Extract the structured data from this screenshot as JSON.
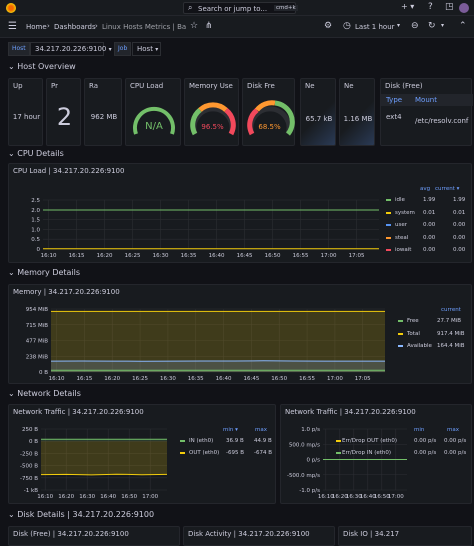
{
  "topbar": {
    "search_placeholder": "Search or jump to...",
    "search_shortcut": "cmd+k",
    "add_label": "+ ▾"
  },
  "nav": {
    "breadcrumb": [
      "Home",
      "Dashboards",
      "Linux Hosts Metrics | Base"
    ],
    "time_range": "Last 1 hour"
  },
  "vars": {
    "host_label": "Host",
    "host_value": "34.217.20.226:9100",
    "job_label": "Job",
    "job_value": "Host"
  },
  "rows": {
    "host_overview": "Host Overview",
    "cpu_details": "CPU Details",
    "memory_details": "Memory Details",
    "network_details": "Network Details",
    "disk_details": "Disk Details | 34.217.20.226:9100"
  },
  "stats": [
    {
      "title": "Up",
      "value": "17 hour"
    },
    {
      "title": "Pr",
      "value": "2"
    },
    {
      "title": "Ra",
      "value": "962 MB"
    },
    {
      "title": "CPU Load",
      "value": "N/A"
    },
    {
      "title": "Memory Use",
      "value": "96.5%",
      "level": 0.965
    },
    {
      "title": "Disk Fre",
      "value": "68.5%",
      "level": 0.685
    },
    {
      "title": "Ne",
      "value": "65.7 kB"
    },
    {
      "title": "Ne",
      "value": "1.16 MB"
    }
  ],
  "disk_table": {
    "title": "Disk (Free)",
    "headers": [
      "Type",
      "Mount"
    ],
    "rows": [
      [
        "ext4",
        "/etc/resolv.conf"
      ]
    ]
  },
  "cpu_load": {
    "title": "CPU Load | 34.217.20.226:9100",
    "legend_headers": [
      "avg",
      "current ▾"
    ],
    "legend": [
      {
        "name": "idle",
        "avg": "1.99",
        "current": "1.99",
        "color": "#73bf69"
      },
      {
        "name": "system",
        "avg": "0.01",
        "current": "0.01",
        "color": "#f2cc0c"
      },
      {
        "name": "user",
        "avg": "0.00",
        "current": "0.00",
        "color": "#5794f2"
      },
      {
        "name": "steal",
        "avg": "0.00",
        "current": "0.00",
        "color": "#ff9830"
      },
      {
        "name": "iowait",
        "avg": "0.00",
        "current": "0.00",
        "color": "#f2495c"
      }
    ]
  },
  "memory": {
    "title": "Memory | 34.217.20.226:9100",
    "legend_header": "current",
    "legend": [
      {
        "name": "Free",
        "value": "27.7 MiB",
        "color": "#73bf69"
      },
      {
        "name": "Total",
        "value": "917.4 MiB",
        "color": "#f2cc0c"
      },
      {
        "name": "Available",
        "value": "164.4 MiB",
        "color": "#8ab8ff"
      }
    ]
  },
  "net1": {
    "title": "Network Traffic | 34.217.20.226:9100",
    "legend_headers": [
      "min ▾",
      "max"
    ],
    "legend": [
      {
        "name": "IN (eth0)",
        "min": "36.9 B",
        "max": "44.9 B",
        "color": "#73bf69"
      },
      {
        "name": "OUT (eth0)",
        "min": "-695 B",
        "max": "-674 B",
        "color": "#f2cc0c"
      }
    ]
  },
  "net2": {
    "title": "Network Traffic | 34.217.20.226:9100",
    "legend_headers": [
      "min",
      "max"
    ],
    "legend": [
      {
        "name": "Err/Drop OUT (eth0)",
        "min": "0.00 p/s",
        "max": "0.00 p/s",
        "color": "#f2cc0c"
      },
      {
        "name": "Err/Drop IN (eth0)",
        "min": "0.00 p/s",
        "max": "0.00 p/s",
        "color": "#73bf69"
      }
    ]
  },
  "disk_panels": [
    "Disk (Free) | 34.217.20.226:9100",
    "Disk Activity | 34.217.20.226:9100",
    "Disk IO | 34.217"
  ],
  "chart_data": [
    {
      "type": "line",
      "title": "CPU Load | 34.217.20.226:9100",
      "x": [
        "16:10",
        "16:15",
        "16:20",
        "16:25",
        "16:30",
        "16:35",
        "16:40",
        "16:45",
        "16:50",
        "16:55",
        "17:00",
        "17:05"
      ],
      "yticks": [
        "0",
        "0.5",
        "1.0",
        "1.5",
        "2.0",
        "2.5"
      ],
      "ylim": [
        0,
        2.5
      ],
      "series": [
        {
          "name": "idle",
          "values": [
            1.99,
            1.99,
            1.99,
            1.99,
            1.99,
            1.99,
            1.99,
            1.99,
            1.99,
            1.99,
            1.99,
            1.99
          ]
        },
        {
          "name": "system",
          "values": [
            0.01,
            0.01,
            0.01,
            0.01,
            0.01,
            0.01,
            0.01,
            0.01,
            0.01,
            0.01,
            0.01,
            0.01
          ]
        }
      ]
    },
    {
      "type": "area",
      "title": "Memory | 34.217.20.226:9100",
      "x": [
        "16:10",
        "16:15",
        "16:20",
        "16:25",
        "16:30",
        "16:35",
        "16:40",
        "16:45",
        "16:50",
        "16:55",
        "17:00",
        "17:05"
      ],
      "yticks": [
        "0 B",
        "238 MiB",
        "477 MiB",
        "715 MiB",
        "954 MiB"
      ],
      "ylim": [
        0,
        954
      ],
      "series": [
        {
          "name": "Total",
          "values": [
            917.4,
            917.4,
            917.4,
            917.4,
            917.4,
            917.4,
            917.4,
            917.4,
            917.4,
            917.4,
            917.4,
            917.4
          ]
        },
        {
          "name": "Available",
          "values": [
            165,
            166,
            165,
            164,
            165,
            166,
            167,
            170,
            166,
            165,
            165,
            164.4
          ]
        },
        {
          "name": "Free",
          "values": [
            28,
            28,
            28,
            28,
            28,
            28,
            28,
            28,
            28,
            28,
            28,
            27.7
          ]
        }
      ]
    },
    {
      "type": "area",
      "title": "Network Traffic | 34.217.20.226:9100",
      "x": [
        "16:10",
        "16:20",
        "16:30",
        "16:40",
        "16:50",
        "17:00"
      ],
      "yticks": [
        "250 B",
        "0 B",
        "-250 B",
        "-500 B",
        "-750 B",
        "-1 kB"
      ],
      "ylim": [
        -1000,
        250
      ],
      "series": [
        {
          "name": "IN (eth0)",
          "values": [
            40,
            41,
            40,
            42,
            40,
            41
          ]
        },
        {
          "name": "OUT (eth0)",
          "values": [
            -684,
            -680,
            -690,
            -676,
            -686,
            -680
          ]
        }
      ]
    },
    {
      "type": "line",
      "title": "Network Traffic | 34.217.20.226:9100",
      "x": [
        "16:10",
        "16:20",
        "16:30",
        "16:40",
        "16:50",
        "17:00"
      ],
      "yticks": [
        "1.0 p/s",
        "500.0 mp/s",
        "0 p/s",
        "-500.0 mp/s",
        "-1.0 p/s"
      ],
      "ylim": [
        -1,
        1
      ],
      "series": [
        {
          "name": "Err/Drop OUT (eth0)",
          "values": [
            0,
            0,
            0,
            0,
            0,
            0
          ]
        },
        {
          "name": "Err/Drop IN (eth0)",
          "values": [
            0,
            0,
            0,
            0,
            0,
            0
          ]
        }
      ]
    }
  ]
}
